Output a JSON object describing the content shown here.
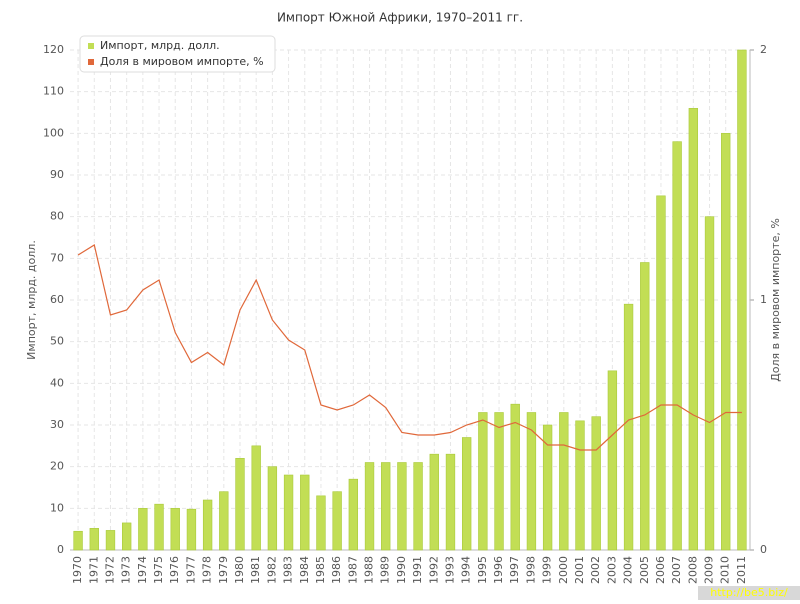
{
  "chart_data": {
    "type": "bar-line",
    "title": "Импорт Южной Африки, 1970–2011 гг.",
    "y_label": "Импорт, млрд. долл.",
    "y2_label": "Доля в мировом импорте, %",
    "watermark": "http://be5.biz/",
    "categories": [
      "1970",
      "1971",
      "1972",
      "1973",
      "1974",
      "1975",
      "1976",
      "1977",
      "1978",
      "1979",
      "1980",
      "1981",
      "1982",
      "1983",
      "1984",
      "1985",
      "1986",
      "1987",
      "1988",
      "1989",
      "1990",
      "1991",
      "1992",
      "1993",
      "1994",
      "1995",
      "1996",
      "1997",
      "1998",
      "1999",
      "2000",
      "2001",
      "2002",
      "2003",
      "2004",
      "2005",
      "2006",
      "2007",
      "2008",
      "2009",
      "2010",
      "2011"
    ],
    "series": [
      {
        "name": "Импорт, млрд. долл.",
        "color": "#c2de55",
        "type": "bar",
        "values": [
          4.5,
          5.2,
          4.7,
          6.5,
          10,
          11,
          10,
          9.8,
          12,
          14,
          22,
          25,
          20,
          18,
          18,
          13,
          14,
          17,
          21,
          21,
          21,
          21,
          23,
          23,
          27,
          33,
          33,
          35,
          33,
          30,
          33,
          31,
          32,
          43,
          59,
          69,
          85,
          98,
          106,
          80,
          100,
          120
        ]
      },
      {
        "name": "Доля в мировом импорте, %",
        "color": "#e0683a",
        "type": "line",
        "axis": "y2",
        "values": [
          1.18,
          1.22,
          0.94,
          0.96,
          1.04,
          1.08,
          0.87,
          0.75,
          0.79,
          0.74,
          0.96,
          1.08,
          0.92,
          0.84,
          0.8,
          0.58,
          0.56,
          0.58,
          0.62,
          0.57,
          0.47,
          0.46,
          0.46,
          0.47,
          0.5,
          0.52,
          0.49,
          0.51,
          0.48,
          0.42,
          0.42,
          0.4,
          0.4,
          0.46,
          0.52,
          0.54,
          0.58,
          0.58,
          0.54,
          0.51,
          0.55,
          0.55
        ]
      }
    ],
    "ylim": [
      0,
      120
    ],
    "yticks": [
      0,
      10,
      20,
      30,
      40,
      50,
      60,
      70,
      80,
      90,
      100,
      110,
      120
    ],
    "y2lim": [
      0,
      2
    ],
    "y2ticks": [
      0,
      1,
      2
    ],
    "grid": true,
    "legend": "top-left"
  }
}
